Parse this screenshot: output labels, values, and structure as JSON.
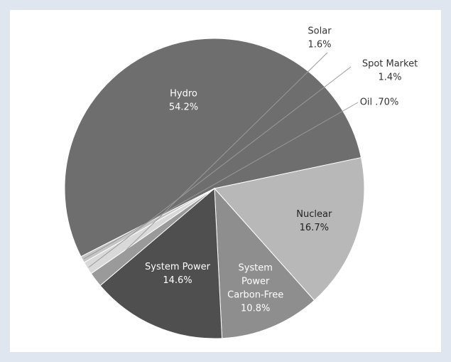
{
  "chart_data": {
    "type": "pie",
    "title": "",
    "slices": [
      {
        "label": "Hydro",
        "value": 54.2,
        "text": "54.2%",
        "color": "#6e6e6e",
        "label_color": "#ffffff"
      },
      {
        "label": "Nuclear",
        "value": 16.7,
        "text": "16.7%",
        "color": "#b8b8b8",
        "label_color": "#222222"
      },
      {
        "label": "System Power Carbon-Free",
        "value": 10.8,
        "text": "10.8%",
        "color": "#8e8e8e",
        "label_color": "#ffffff",
        "label_lines": [
          "System",
          "Power",
          "Carbon-Free"
        ]
      },
      {
        "label": "System Power",
        "value": 14.6,
        "text": "14.6%",
        "color": "#4f4f4f",
        "label_color": "#ffffff"
      },
      {
        "label": "Solar",
        "value": 1.6,
        "text": "1.6%",
        "color": "#9a9a9a",
        "label_color": "#333333"
      },
      {
        "label": "Spot Market",
        "value": 1.4,
        "text": "1.4%",
        "color": "#d9d9d9",
        "label_color": "#333333"
      },
      {
        "label": "Oil",
        "value": 0.7,
        "text": ".70%",
        "color": "#c4c4c4",
        "label_color": "#333333"
      }
    ],
    "legend": "none"
  }
}
